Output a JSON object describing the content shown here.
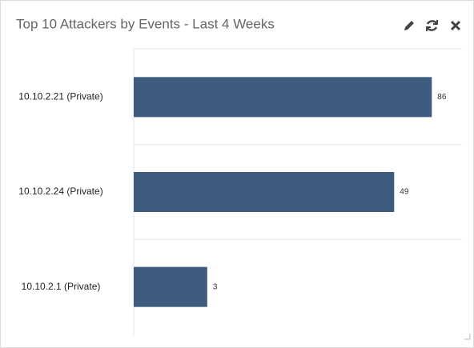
{
  "chart_data": {
    "type": "bar",
    "orientation": "horizontal",
    "title": "Top 10 Attackers by Events - Last 4 Weeks",
    "categories": [
      "10.10.2.21 (Private)",
      "10.10.2.24 (Private)",
      "10.10.2.1 (Private)"
    ],
    "values": [
      86,
      49,
      3
    ],
    "color": "#3e5b80",
    "xlim": [
      1,
      135
    ],
    "log_scale": true
  }
}
